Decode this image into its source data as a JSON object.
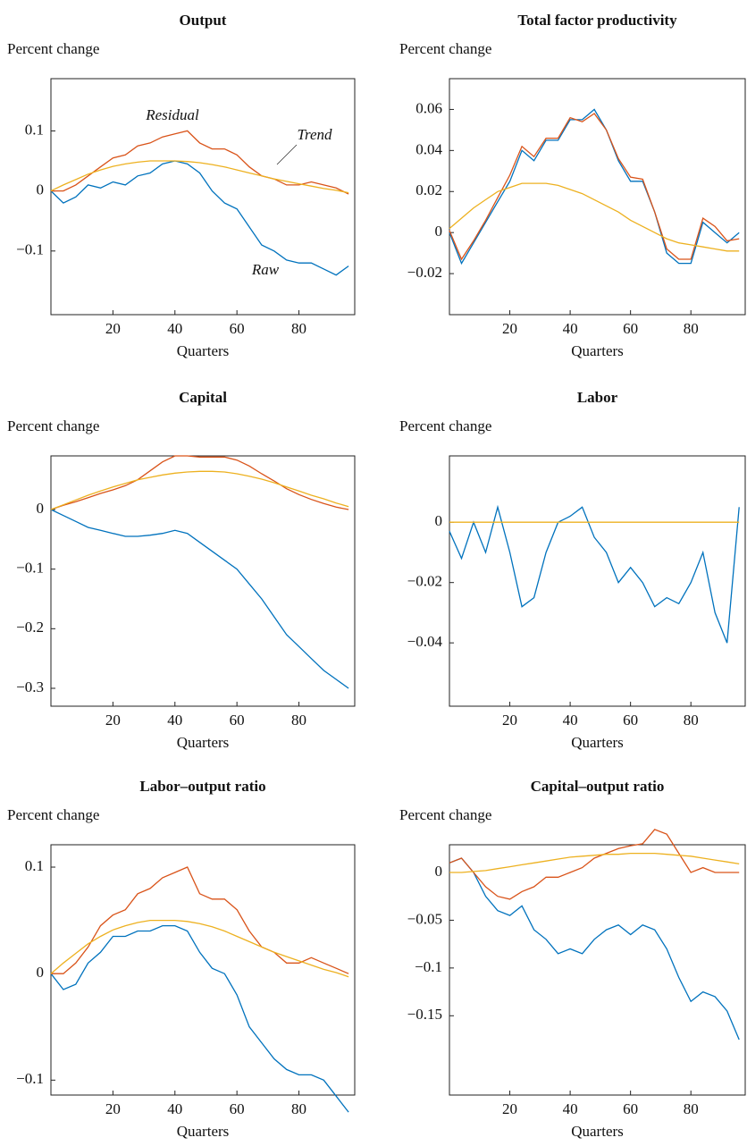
{
  "chart_data": [
    {
      "type": "line",
      "title": "Output",
      "ylabel": "Percent change",
      "xlabel": "Quarters",
      "x": [
        0,
        4,
        8,
        12,
        16,
        20,
        24,
        28,
        32,
        36,
        40,
        44,
        48,
        52,
        56,
        60,
        64,
        68,
        72,
        76,
        80,
        84,
        88,
        92,
        96
      ],
      "xlim": [
        0,
        98
      ],
      "xticks": [
        20,
        40,
        60,
        80
      ],
      "ylim": [
        -0.206,
        0.187
      ],
      "yticks": [
        0.1,
        0,
        {
          "value": -0.1,
          "label": "−0.1"
        }
      ],
      "series": [
        {
          "name": "Raw",
          "color": "#0072bd",
          "values": [
            0,
            -0.02,
            -0.01,
            0.01,
            0.005,
            0.015,
            0.01,
            0.025,
            0.03,
            0.045,
            0.05,
            0.045,
            0.03,
            0.0,
            -0.02,
            -0.03,
            -0.06,
            -0.09,
            -0.1,
            -0.115,
            -0.12,
            -0.12,
            -0.13,
            -0.14,
            -0.125
          ]
        },
        {
          "name": "Residual",
          "color": "#d95319",
          "values": [
            0,
            0,
            0.01,
            0.025,
            0.04,
            0.055,
            0.06,
            0.075,
            0.08,
            0.09,
            0.095,
            0.1,
            0.08,
            0.07,
            0.07,
            0.06,
            0.04,
            0.025,
            0.02,
            0.01,
            0.01,
            0.015,
            0.01,
            0.005,
            -0.005
          ]
        },
        {
          "name": "Trend",
          "color": "#edb120",
          "values": [
            0,
            0.01,
            0.019,
            0.028,
            0.035,
            0.041,
            0.045,
            0.048,
            0.05,
            0.05,
            0.05,
            0.049,
            0.047,
            0.044,
            0.04,
            0.035,
            0.03,
            0.025,
            0.02,
            0.016,
            0.012,
            0.008,
            0.004,
            0.001,
            -0.003
          ]
        }
      ]
    },
    {
      "type": "line",
      "title": "Total factor productivity",
      "ylabel": "Percent change",
      "xlabel": "Quarters",
      "x": [
        0,
        4,
        8,
        12,
        16,
        20,
        24,
        28,
        32,
        36,
        40,
        44,
        48,
        52,
        56,
        60,
        64,
        68,
        72,
        76,
        80,
        84,
        88,
        92,
        96
      ],
      "xlim": [
        0,
        98
      ],
      "xticks": [
        20,
        40,
        60,
        80
      ],
      "ylim": [
        -0.04,
        0.075
      ],
      "yticks": [
        0.06,
        0.04,
        0.02,
        0,
        {
          "value": -0.02,
          "label": "−0.02"
        }
      ],
      "series": [
        {
          "color": "#0072bd",
          "values": [
            0,
            -0.015,
            -0.005,
            0.005,
            0.015,
            0.025,
            0.04,
            0.035,
            0.045,
            0.045,
            0.055,
            0.055,
            0.06,
            0.05,
            0.035,
            0.025,
            0.025,
            0.01,
            -0.01,
            -0.015,
            -0.015,
            0.005,
            0.0,
            -0.005,
            0.0
          ]
        },
        {
          "color": "#d95319",
          "values": [
            0.001,
            -0.013,
            -0.004,
            0.006,
            0.017,
            0.028,
            0.042,
            0.037,
            0.046,
            0.046,
            0.056,
            0.054,
            0.058,
            0.05,
            0.036,
            0.027,
            0.026,
            0.01,
            -0.008,
            -0.013,
            -0.013,
            0.007,
            0.003,
            -0.004,
            -0.003
          ]
        },
        {
          "color": "#edb120",
          "values": [
            0.002,
            0.007,
            0.012,
            0.016,
            0.02,
            0.022,
            0.024,
            0.024,
            0.024,
            0.023,
            0.021,
            0.019,
            0.016,
            0.013,
            0.01,
            0.006,
            0.003,
            0.0,
            -0.003,
            -0.005,
            -0.006,
            -0.007,
            -0.008,
            -0.009,
            -0.009
          ]
        }
      ]
    },
    {
      "type": "line",
      "title": "Capital",
      "ylabel": "Percent change",
      "xlabel": "Quarters",
      "x": [
        0,
        4,
        8,
        12,
        16,
        20,
        24,
        28,
        32,
        36,
        40,
        44,
        48,
        52,
        56,
        60,
        64,
        68,
        72,
        76,
        80,
        84,
        88,
        92,
        96
      ],
      "xlim": [
        0,
        98
      ],
      "xticks": [
        20,
        40,
        60,
        80
      ],
      "ylim": [
        -0.33,
        0.09
      ],
      "yticks": [
        0,
        {
          "value": -0.1,
          "label": "−0.1"
        },
        {
          "value": -0.2,
          "label": "−0.2"
        },
        {
          "value": -0.3,
          "label": "−0.3"
        }
      ],
      "series": [
        {
          "color": "#0072bd",
          "values": [
            0,
            -0.01,
            -0.02,
            -0.03,
            -0.035,
            -0.04,
            -0.045,
            -0.045,
            -0.043,
            -0.04,
            -0.035,
            -0.04,
            -0.055,
            -0.07,
            -0.085,
            -0.1,
            -0.125,
            -0.15,
            -0.18,
            -0.21,
            -0.23,
            -0.25,
            -0.27,
            -0.285,
            -0.3
          ]
        },
        {
          "color": "#d95319",
          "values": [
            0,
            0.007,
            0.013,
            0.02,
            0.027,
            0.033,
            0.04,
            0.05,
            0.065,
            0.08,
            0.09,
            0.09,
            0.088,
            0.088,
            0.088,
            0.083,
            0.073,
            0.06,
            0.048,
            0.035,
            0.025,
            0.017,
            0.01,
            0.004,
            0.0
          ]
        },
        {
          "color": "#edb120",
          "values": [
            0,
            0.008,
            0.016,
            0.024,
            0.031,
            0.038,
            0.044,
            0.05,
            0.054,
            0.058,
            0.061,
            0.063,
            0.064,
            0.064,
            0.063,
            0.06,
            0.056,
            0.051,
            0.045,
            0.038,
            0.031,
            0.024,
            0.018,
            0.011,
            0.005
          ]
        }
      ]
    },
    {
      "type": "line",
      "title": "Labor",
      "ylabel": "Percent change",
      "xlabel": "Quarters",
      "x": [
        0,
        4,
        8,
        12,
        16,
        20,
        24,
        28,
        32,
        36,
        40,
        44,
        48,
        52,
        56,
        60,
        64,
        68,
        72,
        76,
        80,
        84,
        88,
        92,
        96
      ],
      "xlim": [
        0,
        98
      ],
      "xticks": [
        20,
        40,
        60,
        80
      ],
      "ylim": [
        -0.061,
        0.022
      ],
      "yticks": [
        0,
        {
          "value": -0.02,
          "label": "−0.02"
        },
        {
          "value": -0.04,
          "label": "−0.04"
        }
      ],
      "series": [
        {
          "color": "#0072bd",
          "values": [
            -0.003,
            -0.012,
            0.0,
            -0.01,
            0.005,
            -0.01,
            -0.028,
            -0.025,
            -0.01,
            0.0,
            0.002,
            0.005,
            -0.005,
            -0.01,
            -0.02,
            -0.015,
            -0.02,
            -0.028,
            -0.025,
            -0.027,
            -0.02,
            -0.01,
            -0.03,
            -0.04,
            0.005
          ]
        },
        {
          "color": "#edb120",
          "values": [
            0,
            0,
            0,
            0,
            0,
            0,
            0,
            0,
            0,
            0,
            0,
            0,
            0,
            0,
            0,
            0,
            0,
            0,
            0,
            0,
            0,
            0,
            0,
            0,
            0
          ]
        }
      ]
    },
    {
      "type": "line",
      "title": "Labor–output  ratio",
      "ylabel": "Percent change",
      "xlabel": "Quarters",
      "x": [
        0,
        4,
        8,
        12,
        16,
        20,
        24,
        28,
        32,
        36,
        40,
        44,
        48,
        52,
        56,
        60,
        64,
        68,
        72,
        76,
        80,
        84,
        88,
        92,
        96
      ],
      "xlim": [
        0,
        98
      ],
      "xticks": [
        20,
        40,
        60,
        80
      ],
      "ylim": [
        -0.114,
        0.121
      ],
      "yticks": [
        0.1,
        0,
        {
          "value": -0.1,
          "label": "−0.1"
        }
      ],
      "series": [
        {
          "color": "#0072bd",
          "values": [
            0,
            -0.015,
            -0.01,
            0.01,
            0.02,
            0.035,
            0.035,
            0.04,
            0.04,
            0.045,
            0.045,
            0.04,
            0.02,
            0.005,
            0.0,
            -0.02,
            -0.05,
            -0.065,
            -0.08,
            -0.09,
            -0.095,
            -0.095,
            -0.1,
            -0.115,
            -0.13
          ]
        },
        {
          "color": "#d95319",
          "values": [
            0,
            0,
            0.01,
            0.025,
            0.045,
            0.055,
            0.06,
            0.075,
            0.08,
            0.09,
            0.095,
            0.1,
            0.075,
            0.07,
            0.07,
            0.06,
            0.04,
            0.025,
            0.02,
            0.01,
            0.01,
            0.015,
            0.01,
            0.005,
            0.0
          ]
        },
        {
          "color": "#edb120",
          "values": [
            0,
            0.01,
            0.019,
            0.028,
            0.035,
            0.041,
            0.045,
            0.048,
            0.05,
            0.05,
            0.05,
            0.049,
            0.047,
            0.044,
            0.04,
            0.035,
            0.03,
            0.025,
            0.02,
            0.016,
            0.012,
            0.008,
            0.004,
            0.001,
            -0.003
          ]
        }
      ]
    },
    {
      "type": "line",
      "title": "Capital–output ratio",
      "ylabel": "Percent change",
      "xlabel": "Quarters",
      "x": [
        0,
        4,
        8,
        12,
        16,
        20,
        24,
        28,
        32,
        36,
        40,
        44,
        48,
        52,
        56,
        60,
        64,
        68,
        72,
        76,
        80,
        84,
        88,
        92,
        96
      ],
      "xlim": [
        0,
        98
      ],
      "xticks": [
        20,
        40,
        60,
        80
      ],
      "ylim": [
        -0.233,
        0.029
      ],
      "yticks": [
        0,
        {
          "value": -0.05,
          "label": "−0.05"
        },
        {
          "value": -0.1,
          "label": "−0.1"
        },
        {
          "value": -0.15,
          "label": "−0.15"
        }
      ],
      "series": [
        {
          "color": "#0072bd",
          "values": [
            0.01,
            0.015,
            0.0,
            -0.025,
            -0.04,
            -0.045,
            -0.035,
            -0.06,
            -0.07,
            -0.085,
            -0.08,
            -0.085,
            -0.07,
            -0.06,
            -0.055,
            -0.065,
            -0.055,
            -0.06,
            -0.08,
            -0.11,
            -0.135,
            -0.125,
            -0.13,
            -0.145,
            -0.175
          ]
        },
        {
          "color": "#d95319",
          "values": [
            0.01,
            0.015,
            0.0,
            -0.015,
            -0.025,
            -0.028,
            -0.02,
            -0.015,
            -0.005,
            -0.005,
            0.0,
            0.005,
            0.015,
            0.02,
            0.025,
            0.028,
            0.03,
            0.045,
            0.04,
            0.02,
            0.0,
            0.005,
            0.0,
            0.0,
            0.0
          ]
        },
        {
          "color": "#edb120",
          "values": [
            0,
            0.0,
            0.001,
            0.002,
            0.004,
            0.006,
            0.008,
            0.01,
            0.012,
            0.014,
            0.016,
            0.017,
            0.018,
            0.019,
            0.019,
            0.02,
            0.02,
            0.02,
            0.019,
            0.018,
            0.017,
            0.015,
            0.013,
            0.011,
            0.009
          ]
        }
      ]
    }
  ]
}
